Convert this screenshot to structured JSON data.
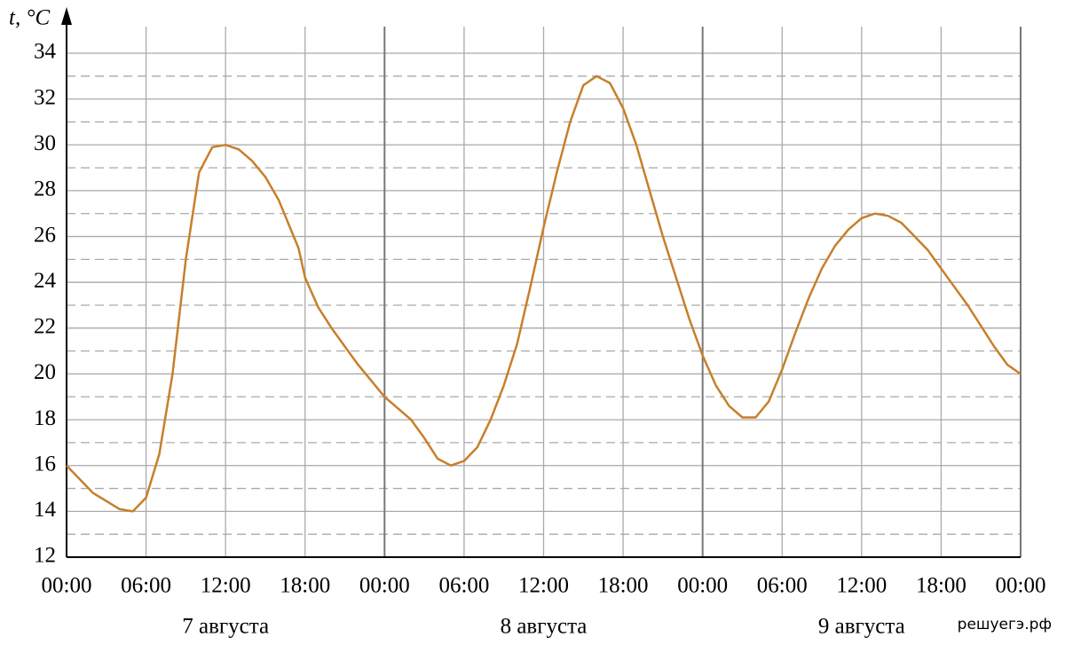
{
  "chart_data": {
    "type": "line",
    "y_label": "t, °C",
    "x": [
      0,
      2,
      4,
      5,
      6,
      7,
      8,
      9,
      10,
      11,
      12,
      13,
      14,
      15,
      16,
      17,
      17.5,
      18,
      19,
      20,
      21,
      22,
      23,
      24,
      26,
      27,
      28,
      29,
      30,
      31,
      32,
      33,
      34,
      35,
      36,
      37,
      38,
      39,
      40,
      41,
      42,
      43,
      44,
      45,
      46,
      47,
      48,
      49,
      50,
      51,
      52,
      53,
      54,
      55,
      56,
      57,
      58,
      59,
      60,
      61,
      62,
      63,
      64,
      65,
      66,
      67,
      68,
      69,
      70,
      71,
      72
    ],
    "series": [
      {
        "color": "#c87f2a",
        "values": [
          16,
          14.8,
          14.1,
          14.0,
          14.6,
          16.5,
          20,
          25,
          28.8,
          29.9,
          30,
          29.8,
          29.3,
          28.6,
          27.6,
          26.2,
          25.5,
          24.2,
          22.9,
          22,
          21.2,
          20.4,
          19.7,
          19.0,
          18.0,
          17.2,
          16.3,
          16.0,
          16.2,
          16.8,
          18,
          19.5,
          21.3,
          23.8,
          26.4,
          28.8,
          31.0,
          32.6,
          33.0,
          32.7,
          31.6,
          30,
          28,
          26,
          24.2,
          22.4,
          20.8,
          19.5,
          18.6,
          18.1,
          18.1,
          18.8,
          20.2,
          21.8,
          23.3,
          24.6,
          25.6,
          26.3,
          26.8,
          27.0,
          26.9,
          26.6,
          26.0,
          25.4,
          24.6,
          23.8,
          23.0,
          22.1,
          21.2,
          20.4,
          20.0
        ]
      }
    ],
    "xlim": [
      0,
      72
    ],
    "xticks": [
      {
        "value": 0,
        "label": "00:00"
      },
      {
        "value": 6,
        "label": "06:00"
      },
      {
        "value": 12,
        "label": "12:00"
      },
      {
        "value": 18,
        "label": "18:00"
      },
      {
        "value": 24,
        "label": "00:00"
      },
      {
        "value": 30,
        "label": "06:00"
      },
      {
        "value": 36,
        "label": "12:00"
      },
      {
        "value": 42,
        "label": "18:00"
      },
      {
        "value": 48,
        "label": "00:00"
      },
      {
        "value": 54,
        "label": "06:00"
      },
      {
        "value": 60,
        "label": "12:00"
      },
      {
        "value": 66,
        "label": "18:00"
      },
      {
        "value": 72,
        "label": "00:00"
      }
    ],
    "ylim": [
      12,
      34
    ],
    "yticks": [
      12,
      14,
      16,
      18,
      20,
      22,
      24,
      26,
      28,
      30,
      32,
      34
    ],
    "minor_yticks": [
      13,
      15,
      17,
      19,
      21,
      23,
      25,
      27,
      29,
      31,
      33
    ],
    "grid": true,
    "day_labels": [
      {
        "x": 12,
        "label": "7 августа"
      },
      {
        "x": 36,
        "label": "8 августа"
      },
      {
        "x": 60,
        "label": "9 августа"
      }
    ],
    "watermark": "решуегэ.рф"
  }
}
